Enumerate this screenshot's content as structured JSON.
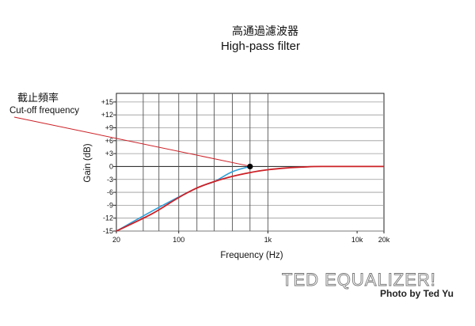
{
  "chart_data": {
    "type": "line",
    "title_zh": "高通過濾波器",
    "title": "High-pass filter",
    "xlabel": "Frequency (Hz)",
    "ylabel": "Gain (dB)",
    "x_scale": "log",
    "xlim": [
      20,
      20000
    ],
    "ylim": [
      -15,
      17
    ],
    "x_ticks": [
      {
        "value": 20,
        "label": "20"
      },
      {
        "value": 100,
        "label": "100"
      },
      {
        "value": 1000,
        "label": "1k"
      },
      {
        "value": 10000,
        "label": "10k"
      },
      {
        "value": 20000,
        "label": "20k"
      }
    ],
    "y_ticks": [
      {
        "value": 15,
        "label": "+15"
      },
      {
        "value": 12,
        "label": "+12"
      },
      {
        "value": 9,
        "label": "+9"
      },
      {
        "value": 6,
        "label": "+6"
      },
      {
        "value": 3,
        "label": "+3"
      },
      {
        "value": 0,
        "label": "0"
      },
      {
        "value": -3,
        "label": "-3"
      },
      {
        "value": -6,
        "label": "-6"
      },
      {
        "value": -9,
        "label": "-9"
      },
      {
        "value": -12,
        "label": "-12"
      },
      {
        "value": -15,
        "label": "-15"
      }
    ],
    "grid": true,
    "vertical_gridlines_hz": [
      40,
      60,
      100,
      160,
      250,
      400,
      630,
      1000
    ],
    "series": [
      {
        "color": "#2b9fd9",
        "x": [
          20,
          60,
          160,
          250,
          400,
          630
        ],
        "y": [
          -15,
          -9.5,
          -5,
          -3.5,
          -1.2,
          0
        ]
      },
      {
        "color": "#cc2026",
        "x": [
          20,
          50,
          100,
          160,
          250,
          400,
          630,
          1000,
          1600,
          2500,
          4000,
          20000
        ],
        "y": [
          -15,
          -11,
          -7.2,
          -5,
          -3.5,
          -2.3,
          -1.4,
          -0.75,
          -0.35,
          -0.12,
          0,
          0
        ]
      }
    ],
    "marker": {
      "x": 630,
      "y": 0
    },
    "annotation": {
      "label_zh": "截止頻率",
      "label": "Cut-off frequency",
      "target": {
        "x": 630,
        "y": 0
      }
    }
  },
  "footer": {
    "brand": "TED EQUALIZER!",
    "credit": "Photo by Ted Yu"
  }
}
